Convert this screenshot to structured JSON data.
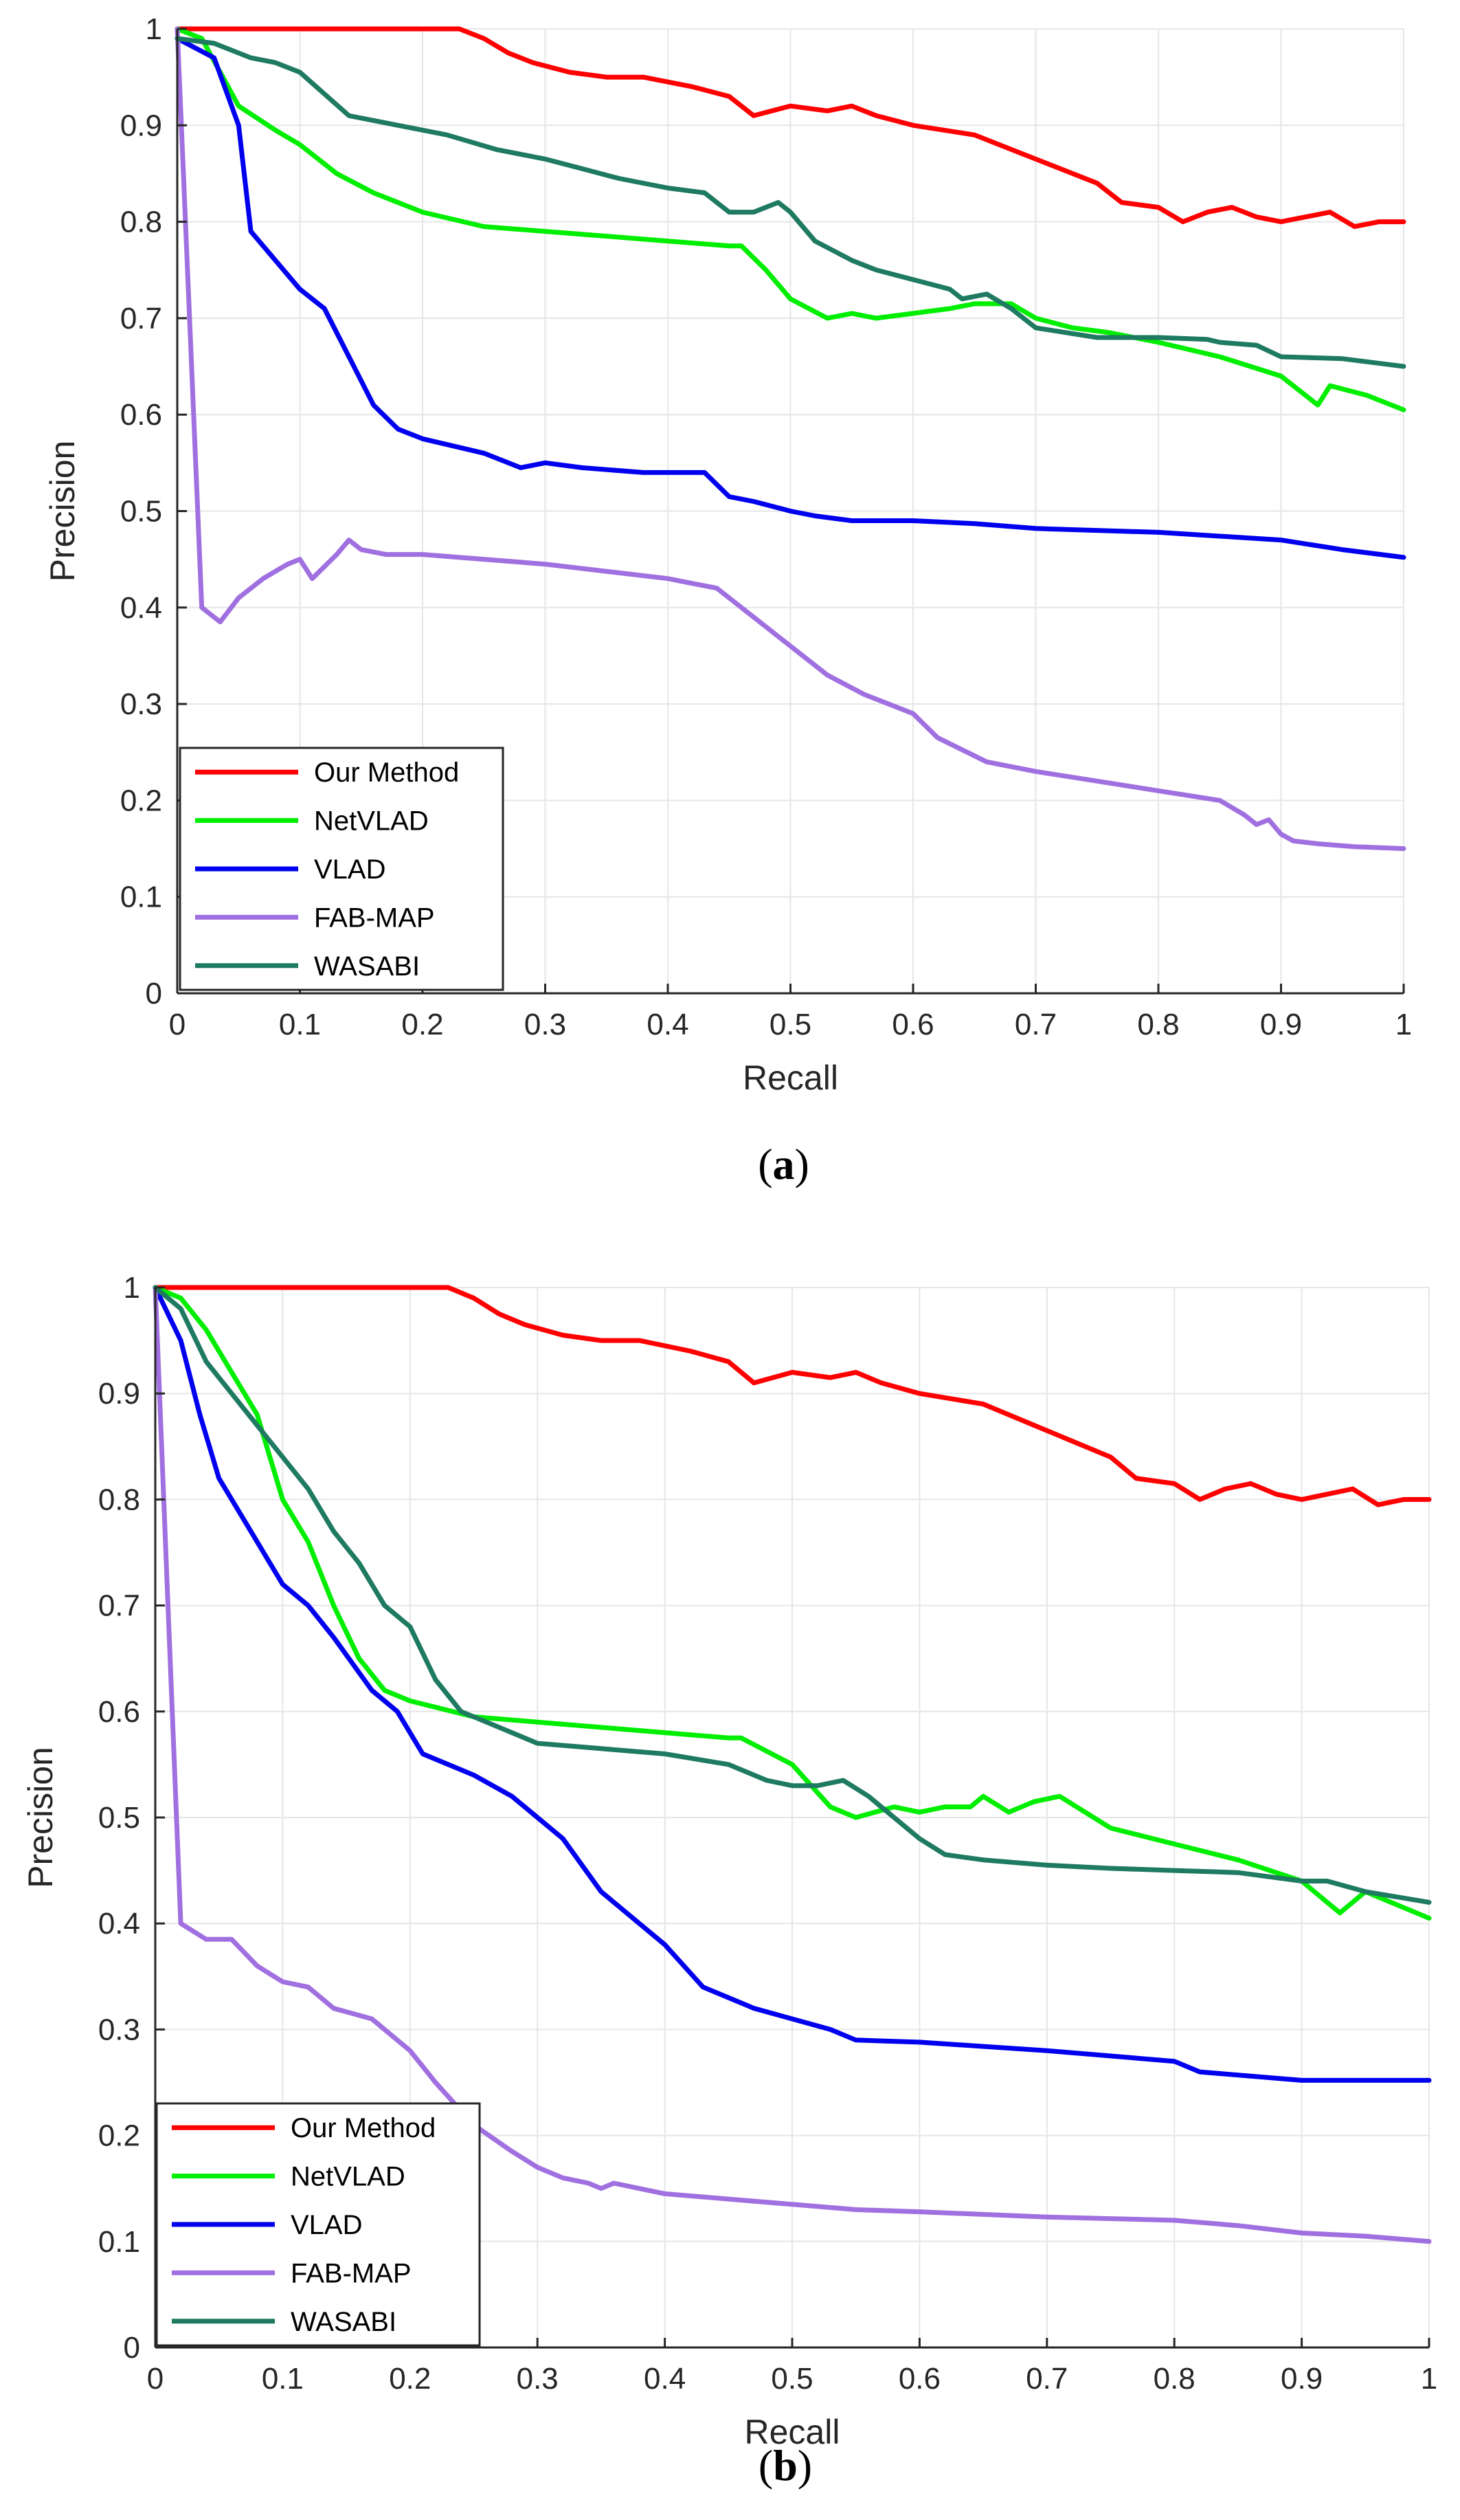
{
  "colors": {
    "our_method": "#ff0000",
    "netvlad": "#00ee00",
    "vlad": "#0000ee",
    "fab_map": "#a070e0",
    "wasabi": "#1e7a60",
    "grid": "#e6e6e6",
    "axis": "#262626"
  },
  "chart_data": [
    {
      "type": "line",
      "caption": "a",
      "xlabel": "Recall",
      "ylabel": "Precision",
      "xlim": [
        0,
        1
      ],
      "ylim": [
        0,
        1
      ],
      "xticks": [
        "0",
        "0.1",
        "0.2",
        "0.3",
        "0.4",
        "0.5",
        "0.6",
        "0.7",
        "0.8",
        "0.9",
        "1"
      ],
      "yticks": [
        "0",
        "0.1",
        "0.2",
        "0.3",
        "0.4",
        "0.5",
        "0.6",
        "0.7",
        "0.8",
        "0.9",
        "1"
      ],
      "grid": true,
      "legend_position": "bottom-left",
      "series": [
        {
          "name": "Our Method",
          "color": "#ff0000",
          "x": [
            0,
            0.1,
            0.23,
            0.25,
            0.27,
            0.29,
            0.32,
            0.35,
            0.38,
            0.42,
            0.45,
            0.47,
            0.5,
            0.53,
            0.55,
            0.57,
            0.6,
            0.65,
            0.69,
            0.72,
            0.75,
            0.77,
            0.8,
            0.82,
            0.84,
            0.86,
            0.88,
            0.9,
            0.92,
            0.94,
            0.96,
            0.98,
            1
          ],
          "y": [
            1,
            1,
            1,
            0.99,
            0.975,
            0.965,
            0.955,
            0.95,
            0.95,
            0.94,
            0.93,
            0.91,
            0.92,
            0.915,
            0.92,
            0.91,
            0.9,
            0.89,
            0.87,
            0.855,
            0.84,
            0.82,
            0.815,
            0.8,
            0.81,
            0.815,
            0.805,
            0.8,
            0.805,
            0.81,
            0.795,
            0.8,
            0.8
          ]
        },
        {
          "name": "NetVLAD",
          "color": "#00ee00",
          "x": [
            0,
            0.02,
            0.05,
            0.08,
            0.1,
            0.13,
            0.16,
            0.2,
            0.25,
            0.3,
            0.35,
            0.4,
            0.45,
            0.46,
            0.48,
            0.5,
            0.53,
            0.55,
            0.57,
            0.6,
            0.63,
            0.65,
            0.68,
            0.7,
            0.73,
            0.76,
            0.8,
            0.85,
            0.9,
            0.93,
            0.94,
            0.97,
            1
          ],
          "y": [
            1,
            0.99,
            0.92,
            0.895,
            0.88,
            0.85,
            0.83,
            0.81,
            0.795,
            0.79,
            0.785,
            0.78,
            0.775,
            0.775,
            0.75,
            0.72,
            0.7,
            0.705,
            0.7,
            0.705,
            0.71,
            0.715,
            0.715,
            0.7,
            0.69,
            0.685,
            0.675,
            0.66,
            0.64,
            0.61,
            0.63,
            0.62,
            0.605
          ]
        },
        {
          "name": "VLAD",
          "color": "#0000ee",
          "x": [
            0,
            0.03,
            0.05,
            0.06,
            0.08,
            0.1,
            0.12,
            0.14,
            0.16,
            0.18,
            0.2,
            0.25,
            0.28,
            0.3,
            0.33,
            0.38,
            0.43,
            0.45,
            0.47,
            0.5,
            0.52,
            0.55,
            0.6,
            0.65,
            0.7,
            0.8,
            0.9,
            0.95,
            1
          ],
          "y": [
            0.99,
            0.97,
            0.9,
            0.79,
            0.76,
            0.73,
            0.71,
            0.66,
            0.61,
            0.585,
            0.575,
            0.56,
            0.545,
            0.55,
            0.545,
            0.54,
            0.54,
            0.515,
            0.51,
            0.5,
            0.495,
            0.49,
            0.49,
            0.487,
            0.482,
            0.478,
            0.47,
            0.46,
            0.452
          ]
        },
        {
          "name": "FAB-MAP",
          "color": "#a070e0",
          "x": [
            0,
            0.01,
            0.02,
            0.035,
            0.05,
            0.07,
            0.09,
            0.1,
            0.11,
            0.13,
            0.14,
            0.15,
            0.17,
            0.2,
            0.3,
            0.4,
            0.44,
            0.47,
            0.5,
            0.53,
            0.56,
            0.6,
            0.62,
            0.66,
            0.7,
            0.75,
            0.8,
            0.85,
            0.87,
            0.88,
            0.89,
            0.9,
            0.91,
            0.93,
            0.96,
            1
          ],
          "y": [
            1,
            0.7,
            0.4,
            0.385,
            0.41,
            0.43,
            0.445,
            0.45,
            0.43,
            0.455,
            0.47,
            0.46,
            0.455,
            0.455,
            0.445,
            0.43,
            0.42,
            0.39,
            0.36,
            0.33,
            0.31,
            0.29,
            0.265,
            0.24,
            0.23,
            0.22,
            0.21,
            0.2,
            0.185,
            0.175,
            0.18,
            0.165,
            0.158,
            0.155,
            0.152,
            0.15
          ]
        },
        {
          "name": "WASABI",
          "color": "#1e7a60",
          "x": [
            0,
            0.03,
            0.06,
            0.08,
            0.1,
            0.14,
            0.18,
            0.22,
            0.26,
            0.3,
            0.33,
            0.36,
            0.4,
            0.43,
            0.45,
            0.47,
            0.49,
            0.5,
            0.52,
            0.55,
            0.57,
            0.6,
            0.63,
            0.64,
            0.66,
            0.68,
            0.7,
            0.75,
            0.8,
            0.84,
            0.85,
            0.88,
            0.9,
            0.95,
            1
          ],
          "y": [
            0.99,
            0.985,
            0.97,
            0.965,
            0.955,
            0.91,
            0.9,
            0.89,
            0.875,
            0.865,
            0.855,
            0.845,
            0.835,
            0.83,
            0.81,
            0.81,
            0.82,
            0.81,
            0.78,
            0.76,
            0.75,
            0.74,
            0.73,
            0.72,
            0.725,
            0.71,
            0.69,
            0.68,
            0.68,
            0.678,
            0.675,
            0.672,
            0.66,
            0.658,
            0.65
          ]
        }
      ],
      "legend": [
        "Our Method",
        "NetVLAD",
        "VLAD",
        "FAB-MAP",
        "WASABI"
      ]
    },
    {
      "type": "line",
      "caption": "b",
      "xlabel": "Recall",
      "ylabel": "Precision",
      "xlim": [
        0,
        1
      ],
      "ylim": [
        0,
        1
      ],
      "xticks": [
        "0",
        "0.1",
        "0.2",
        "0.3",
        "0.4",
        "0.5",
        "0.6",
        "0.7",
        "0.8",
        "0.9",
        "1"
      ],
      "yticks": [
        "0",
        "0.1",
        "0.2",
        "0.3",
        "0.4",
        "0.5",
        "0.6",
        "0.7",
        "0.8",
        "0.9",
        "1"
      ],
      "grid": true,
      "legend_position": "bottom-left",
      "series": [
        {
          "name": "Our Method",
          "color": "#ff0000",
          "x": [
            0,
            0.1,
            0.23,
            0.25,
            0.27,
            0.29,
            0.32,
            0.35,
            0.38,
            0.42,
            0.45,
            0.47,
            0.5,
            0.53,
            0.55,
            0.57,
            0.6,
            0.65,
            0.69,
            0.72,
            0.75,
            0.77,
            0.8,
            0.82,
            0.84,
            0.86,
            0.88,
            0.9,
            0.92,
            0.94,
            0.96,
            0.98,
            1
          ],
          "y": [
            1,
            1,
            1,
            0.99,
            0.975,
            0.965,
            0.955,
            0.95,
            0.95,
            0.94,
            0.93,
            0.91,
            0.92,
            0.915,
            0.92,
            0.91,
            0.9,
            0.89,
            0.87,
            0.855,
            0.84,
            0.82,
            0.815,
            0.8,
            0.81,
            0.815,
            0.805,
            0.8,
            0.805,
            0.81,
            0.795,
            0.8,
            0.8
          ]
        },
        {
          "name": "NetVLAD",
          "color": "#00ee00",
          "x": [
            0,
            0.02,
            0.04,
            0.06,
            0.08,
            0.1,
            0.12,
            0.14,
            0.16,
            0.18,
            0.2,
            0.25,
            0.3,
            0.35,
            0.4,
            0.45,
            0.46,
            0.5,
            0.53,
            0.55,
            0.58,
            0.6,
            0.62,
            0.64,
            0.65,
            0.67,
            0.69,
            0.71,
            0.75,
            0.8,
            0.85,
            0.9,
            0.92,
            0.93,
            0.95,
            1
          ],
          "y": [
            1,
            0.99,
            0.96,
            0.92,
            0.88,
            0.8,
            0.76,
            0.7,
            0.65,
            0.62,
            0.61,
            0.595,
            0.59,
            0.585,
            0.58,
            0.575,
            0.575,
            0.55,
            0.51,
            0.5,
            0.51,
            0.505,
            0.51,
            0.51,
            0.52,
            0.505,
            0.515,
            0.52,
            0.49,
            0.475,
            0.46,
            0.44,
            0.42,
            0.41,
            0.43,
            0.405
          ]
        },
        {
          "name": "VLAD",
          "color": "#0000ee",
          "x": [
            0,
            0.02,
            0.035,
            0.05,
            0.07,
            0.1,
            0.12,
            0.14,
            0.17,
            0.19,
            0.21,
            0.23,
            0.25,
            0.28,
            0.3,
            0.32,
            0.35,
            0.38,
            0.4,
            0.43,
            0.45,
            0.47,
            0.5,
            0.53,
            0.55,
            0.6,
            0.7,
            0.8,
            0.82,
            0.9,
            1
          ],
          "y": [
            1,
            0.95,
            0.88,
            0.82,
            0.78,
            0.72,
            0.7,
            0.67,
            0.62,
            0.6,
            0.56,
            0.55,
            0.54,
            0.52,
            0.5,
            0.48,
            0.43,
            0.4,
            0.38,
            0.34,
            0.33,
            0.32,
            0.31,
            0.3,
            0.29,
            0.288,
            0.28,
            0.27,
            0.26,
            0.252,
            0.252
          ]
        },
        {
          "name": "FAB-MAP",
          "color": "#a070e0",
          "x": [
            0,
            0.01,
            0.02,
            0.04,
            0.06,
            0.08,
            0.1,
            0.12,
            0.14,
            0.17,
            0.2,
            0.22,
            0.25,
            0.28,
            0.3,
            0.32,
            0.34,
            0.35,
            0.36,
            0.4,
            0.45,
            0.5,
            0.55,
            0.6,
            0.7,
            0.8,
            0.85,
            0.9,
            0.95,
            1
          ],
          "y": [
            1,
            0.7,
            0.4,
            0.385,
            0.385,
            0.36,
            0.345,
            0.34,
            0.32,
            0.31,
            0.28,
            0.25,
            0.21,
            0.185,
            0.17,
            0.16,
            0.155,
            0.15,
            0.155,
            0.145,
            0.14,
            0.135,
            0.13,
            0.128,
            0.123,
            0.12,
            0.115,
            0.108,
            0.105,
            0.1
          ]
        },
        {
          "name": "WASABI",
          "color": "#1e7a60",
          "x": [
            0,
            0.02,
            0.04,
            0.06,
            0.08,
            0.1,
            0.12,
            0.14,
            0.16,
            0.18,
            0.2,
            0.22,
            0.24,
            0.28,
            0.3,
            0.35,
            0.4,
            0.45,
            0.48,
            0.5,
            0.52,
            0.54,
            0.56,
            0.58,
            0.6,
            0.62,
            0.65,
            0.7,
            0.75,
            0.8,
            0.85,
            0.9,
            0.92,
            0.95,
            1
          ],
          "y": [
            1,
            0.98,
            0.93,
            0.9,
            0.87,
            0.84,
            0.81,
            0.77,
            0.74,
            0.7,
            0.68,
            0.63,
            0.6,
            0.58,
            0.57,
            0.565,
            0.56,
            0.55,
            0.535,
            0.53,
            0.53,
            0.535,
            0.52,
            0.5,
            0.48,
            0.465,
            0.46,
            0.455,
            0.452,
            0.45,
            0.448,
            0.44,
            0.44,
            0.43,
            0.42
          ]
        }
      ],
      "legend": [
        "Our Method",
        "NetVLAD",
        "VLAD",
        "FAB-MAP",
        "WASABI"
      ]
    }
  ]
}
